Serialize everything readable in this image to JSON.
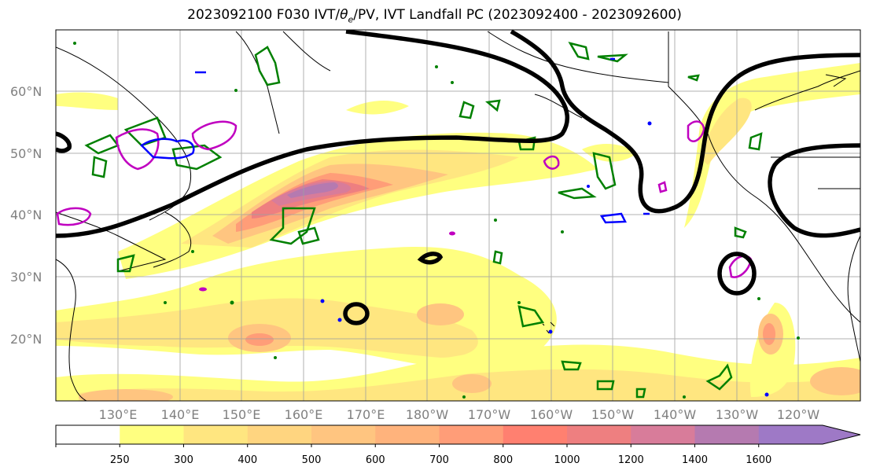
{
  "title_main": "2023092100 F030 IVT/",
  "title_theta": "θ",
  "title_sub": "e",
  "title_rest": "/PV, IVT Landfall PC (2023092400 - 2023092600)",
  "lat_labels": [
    "60°N",
    "50°N",
    "40°N",
    "30°N",
    "20°N"
  ],
  "lon_labels": [
    "130°E",
    "140°E",
    "150°E",
    "160°E",
    "170°E",
    "180°W",
    "170°W",
    "160°W",
    "150°W",
    "140°W",
    "130°W",
    "120°W"
  ],
  "colorbar": {
    "levels": [
      "250",
      "300",
      "400",
      "500",
      "600",
      "700",
      "800",
      "1000",
      "1200",
      "1400",
      "1600"
    ],
    "colors": [
      "#ffffff",
      "#ffff80",
      "#ffe680",
      "#ffd580",
      "#ffc580",
      "#ffb37c",
      "#ff9d78",
      "#ff8070",
      "#ee7f80",
      "#d87c9a",
      "#b57ab0",
      "#9e79c6"
    ]
  },
  "colors": {
    "contour_black": "#000000",
    "green": "#008000",
    "magenta": "#c000c0",
    "blue": "#0000ff",
    "grid": "#a0a0a0"
  }
}
